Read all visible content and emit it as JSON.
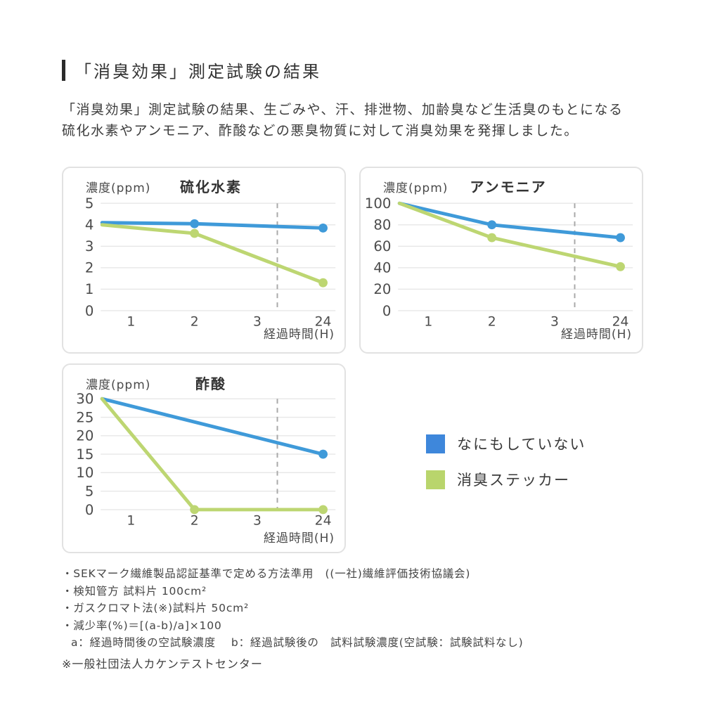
{
  "page": {
    "title": "「消臭効果」測定試験の結果",
    "intro_line1": "「消臭効果」測定試験の結果、生ごみや、汗、排泄物、加齢臭など生活臭のもとになる",
    "intro_line2": "硫化水素やアンモニア、酢酸などの悪臭物質に対して消臭効果を発揮しました。"
  },
  "legend": {
    "items": [
      {
        "label": "なにもしていない",
        "color": "#3e87db"
      },
      {
        "label": "消臭ステッカー",
        "color": "#b9d56c"
      }
    ]
  },
  "notes": {
    "lines": [
      "・SEKマーク繊維製品認証基準で定める方法準用　((一社)繊維評価技術協議会)",
      "・検知管方 試料片 100cm²",
      "・ガスクロマト法(※)試料片 50cm²",
      "・減少率(%)＝[(a-b)/a]×100",
      "a：経過時間後の空試験濃度　 b：経過試験後の　試料試験濃度(空試験：試験試料なし)"
    ],
    "footer": "※一般社団法人カケンテストセンター"
  },
  "chart_data": [
    {
      "type": "line",
      "title": "硫化水素",
      "ylabel": "濃度(ppm)",
      "xlabel": "経過時間(H)",
      "ylim": [
        0,
        5
      ],
      "y_ticks": [
        5,
        4,
        3,
        2,
        1,
        0
      ],
      "x_ticks": [
        "1",
        "2",
        "3",
        "24"
      ],
      "x_positions": {
        "0": 0,
        "1": 0.124,
        "2": 0.396,
        "3": 0.665,
        "24": 0.947
      },
      "axis_break_fraction": 0.751,
      "grid": true,
      "series": [
        {
          "name": "なにもしていない",
          "color": "#3f9ad9",
          "points": [
            {
              "x": "0",
              "y": 4.1
            },
            {
              "x": "2",
              "y": 4.05,
              "dot": true
            },
            {
              "x": "24",
              "y": 3.85,
              "dot": true
            }
          ]
        },
        {
          "name": "消臭ステッカー",
          "color": "#bdd672",
          "points": [
            {
              "x": "0",
              "y": 4.0
            },
            {
              "x": "2",
              "y": 3.6,
              "dot": true
            },
            {
              "x": "24",
              "y": 1.3,
              "dot": true
            }
          ]
        }
      ]
    },
    {
      "type": "line",
      "title": "アンモニア",
      "ylabel": "濃度(ppm)",
      "xlabel": "経過時間(H)",
      "ylim": [
        0,
        100
      ],
      "y_ticks": [
        100,
        80,
        60,
        40,
        20,
        0
      ],
      "x_ticks": [
        "1",
        "2",
        "3",
        "24"
      ],
      "x_positions": {
        "0": 0,
        "1": 0.124,
        "2": 0.396,
        "3": 0.665,
        "24": 0.947
      },
      "axis_break_fraction": 0.751,
      "grid": true,
      "series": [
        {
          "name": "なにもしていない",
          "color": "#3f9ad9",
          "points": [
            {
              "x": "0",
              "y": 100
            },
            {
              "x": "2",
              "y": 80,
              "dot": true
            },
            {
              "x": "24",
              "y": 68,
              "dot": true
            }
          ]
        },
        {
          "name": "消臭ステッカー",
          "color": "#bdd672",
          "points": [
            {
              "x": "0",
              "y": 100
            },
            {
              "x": "2",
              "y": 68,
              "dot": true
            },
            {
              "x": "24",
              "y": 41,
              "dot": true
            }
          ]
        }
      ]
    },
    {
      "type": "line",
      "title": "酢酸",
      "ylabel": "濃度(ppm)",
      "xlabel": "経過時間(H)",
      "ylim": [
        0,
        30
      ],
      "y_ticks": [
        30,
        25,
        20,
        15,
        10,
        5,
        0
      ],
      "x_ticks": [
        "1",
        "2",
        "3",
        "24"
      ],
      "x_positions": {
        "0": 0,
        "1": 0.124,
        "2": 0.396,
        "3": 0.665,
        "24": 0.947
      },
      "axis_break_fraction": 0.751,
      "grid": true,
      "series": [
        {
          "name": "なにもしていない",
          "color": "#3f9ad9",
          "points": [
            {
              "x": "0",
              "y": 30
            },
            {
              "x": "24",
              "y": 15,
              "dot": true
            }
          ]
        },
        {
          "name": "消臭ステッカー",
          "color": "#bdd672",
          "points": [
            {
              "x": "0",
              "y": 30
            },
            {
              "x": "2",
              "y": 0,
              "dot": true
            },
            {
              "x": "24",
              "y": 0,
              "dot": true
            }
          ]
        }
      ]
    }
  ]
}
